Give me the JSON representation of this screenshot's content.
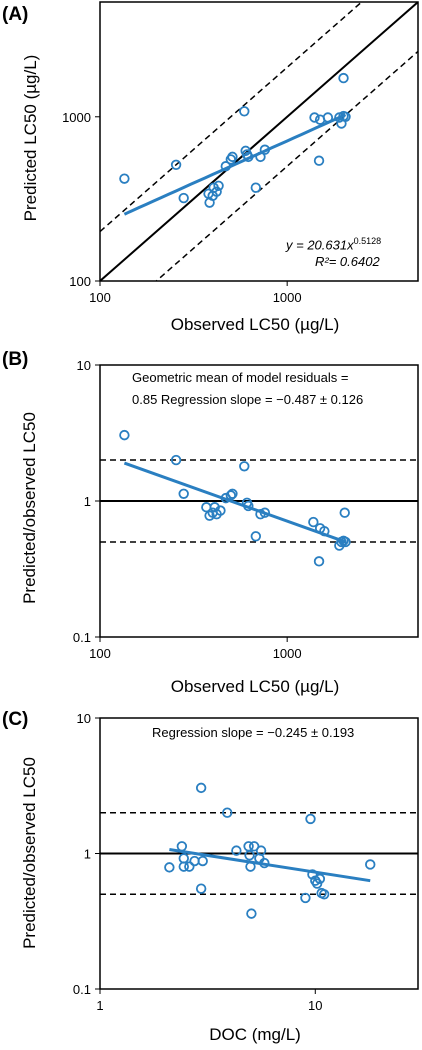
{
  "panels": [
    {
      "label": "(A)",
      "xlabel": "Observed  LC50 (µg/L)",
      "ylabel": "Predicted LC50 (µg/L)",
      "equation": "y = 20.631x",
      "exponent": "0.5128",
      "r2": "R²= 0.6402",
      "annotation": ""
    },
    {
      "label": "(B)",
      "xlabel": "Observed  LC50 (µg/L)",
      "ylabel": "Predicted/observed  LC50",
      "annotation_line1": "Geometric mean of model residuals =",
      "annotation_line2": "0.85 Regression slope = −0.487 ± 0.126"
    },
    {
      "label": "(C)",
      "xlabel": "DOC (mg/L)",
      "ylabel": "Predicted/observed  LC50",
      "annotation_line1": "Regression slope = −0.245 ± 0.193"
    }
  ],
  "chart_data": [
    {
      "type": "scatter",
      "x_scale": "log",
      "y_scale": "log",
      "xlim": [
        100,
        5000
      ],
      "ylim": [
        100,
        5000
      ],
      "xticks": [
        100,
        1000
      ],
      "yticks": [
        100,
        1000
      ],
      "xlabel": "Observed  LC50 (µg/L)",
      "ylabel": "Predicted LC50 (µg/L)",
      "series": [
        {
          "values": [
            [
              135,
              420
            ],
            [
              255,
              510
            ],
            [
              280,
              320
            ],
            [
              380,
              340
            ],
            [
              385,
              300
            ],
            [
              400,
              330
            ],
            [
              405,
              370
            ],
            [
              420,
              350
            ],
            [
              430,
              380
            ],
            [
              470,
              500
            ],
            [
              500,
              550
            ],
            [
              510,
              570
            ],
            [
              590,
              1080
            ],
            [
              600,
              620
            ],
            [
              610,
              590
            ],
            [
              620,
              570
            ],
            [
              680,
              370
            ],
            [
              720,
              570
            ],
            [
              760,
              630
            ],
            [
              1400,
              990
            ],
            [
              1480,
              540
            ],
            [
              1500,
              960
            ],
            [
              1650,
              990
            ],
            [
              1900,
              990
            ],
            [
              1950,
              910
            ],
            [
              2000,
              1010
            ],
            [
              2050,
              1000
            ],
            [
              2000,
              1720
            ]
          ]
        }
      ],
      "fit": {
        "coef": 20.631,
        "exponent": 0.5128,
        "x_range": [
          135,
          2050
        ]
      },
      "reference_lines": {
        "one_to_one": 1,
        "factor_of_two": [
          0.5,
          2
        ]
      },
      "colors": {
        "points": "#2a7fc1",
        "fit": "#2a7fc1",
        "reference": "#000000"
      }
    },
    {
      "type": "scatter",
      "x_scale": "log",
      "y_scale": "log",
      "xlim": [
        100,
        5000
      ],
      "ylim": [
        0.1,
        10
      ],
      "xticks": [
        100,
        1000
      ],
      "yticks": [
        0.1,
        1,
        10
      ],
      "xlabel": "Observed  LC50 (µg/L)",
      "ylabel": "Predicted/observed  LC50",
      "series": [
        {
          "values": [
            [
              135,
              3.05
            ],
            [
              255,
              2.0
            ],
            [
              280,
              1.13
            ],
            [
              370,
              0.9
            ],
            [
              385,
              0.78
            ],
            [
              400,
              0.82
            ],
            [
              410,
              0.9
            ],
            [
              420,
              0.8
            ],
            [
              440,
              0.85
            ],
            [
              470,
              1.05
            ],
            [
              500,
              1.1
            ],
            [
              510,
              1.13
            ],
            [
              590,
              1.8
            ],
            [
              610,
              0.97
            ],
            [
              620,
              0.92
            ],
            [
              680,
              0.55
            ],
            [
              720,
              0.8
            ],
            [
              760,
              0.82
            ],
            [
              1380,
              0.7
            ],
            [
              1480,
              0.36
            ],
            [
              1500,
              0.63
            ],
            [
              1580,
              0.6
            ],
            [
              1900,
              0.47
            ],
            [
              1950,
              0.5
            ],
            [
              2000,
              0.51
            ],
            [
              2030,
              0.82
            ],
            [
              2050,
              0.5
            ]
          ]
        }
      ],
      "fit": {
        "x_range": [
          135,
          2050
        ],
        "y_range": [
          1.9,
          0.5
        ]
      },
      "reference_lines": {
        "y": [
          1
        ],
        "dashed_y": [
          0.5,
          2
        ]
      },
      "colors": {
        "points": "#2a7fc1",
        "fit": "#2a7fc1",
        "reference": "#000000"
      }
    },
    {
      "type": "scatter",
      "x_scale": "log",
      "y_scale": "log",
      "xlim": [
        1,
        30
      ],
      "ylim": [
        0.1,
        10
      ],
      "xticks": [
        1,
        10
      ],
      "yticks": [
        0.1,
        1,
        10
      ],
      "xlabel": "DOC (mg/L)",
      "ylabel": "Predicted/observed  LC50",
      "series": [
        {
          "values": [
            [
              2.1,
              0.79
            ],
            [
              2.4,
              1.13
            ],
            [
              2.45,
              0.8
            ],
            [
              2.45,
              0.92
            ],
            [
              2.6,
              0.8
            ],
            [
              2.75,
              0.88
            ],
            [
              2.95,
              3.05
            ],
            [
              2.95,
              0.55
            ],
            [
              3.0,
              0.88
            ],
            [
              3.9,
              2.0
            ],
            [
              4.3,
              1.05
            ],
            [
              4.9,
              1.13
            ],
            [
              4.95,
              0.97
            ],
            [
              5.0,
              0.8
            ],
            [
              5.05,
              0.36
            ],
            [
              5.2,
              1.13
            ],
            [
              5.5,
              0.92
            ],
            [
              5.6,
              1.05
            ],
            [
              5.8,
              0.85
            ],
            [
              9.0,
              0.47
            ],
            [
              9.5,
              1.8
            ],
            [
              9.7,
              0.7
            ],
            [
              10.0,
              0.63
            ],
            [
              10.2,
              0.6
            ],
            [
              10.5,
              0.65
            ],
            [
              10.7,
              0.51
            ],
            [
              11.0,
              0.5
            ],
            [
              18.0,
              0.83
            ]
          ]
        }
      ],
      "fit": {
        "x_range": [
          2.1,
          18.0
        ],
        "y_range": [
          1.07,
          0.63
        ]
      },
      "reference_lines": {
        "y": [
          1
        ],
        "dashed_y": [
          0.5,
          2
        ]
      },
      "colors": {
        "points": "#2a7fc1",
        "fit": "#2a7fc1",
        "reference": "#000000"
      }
    }
  ]
}
